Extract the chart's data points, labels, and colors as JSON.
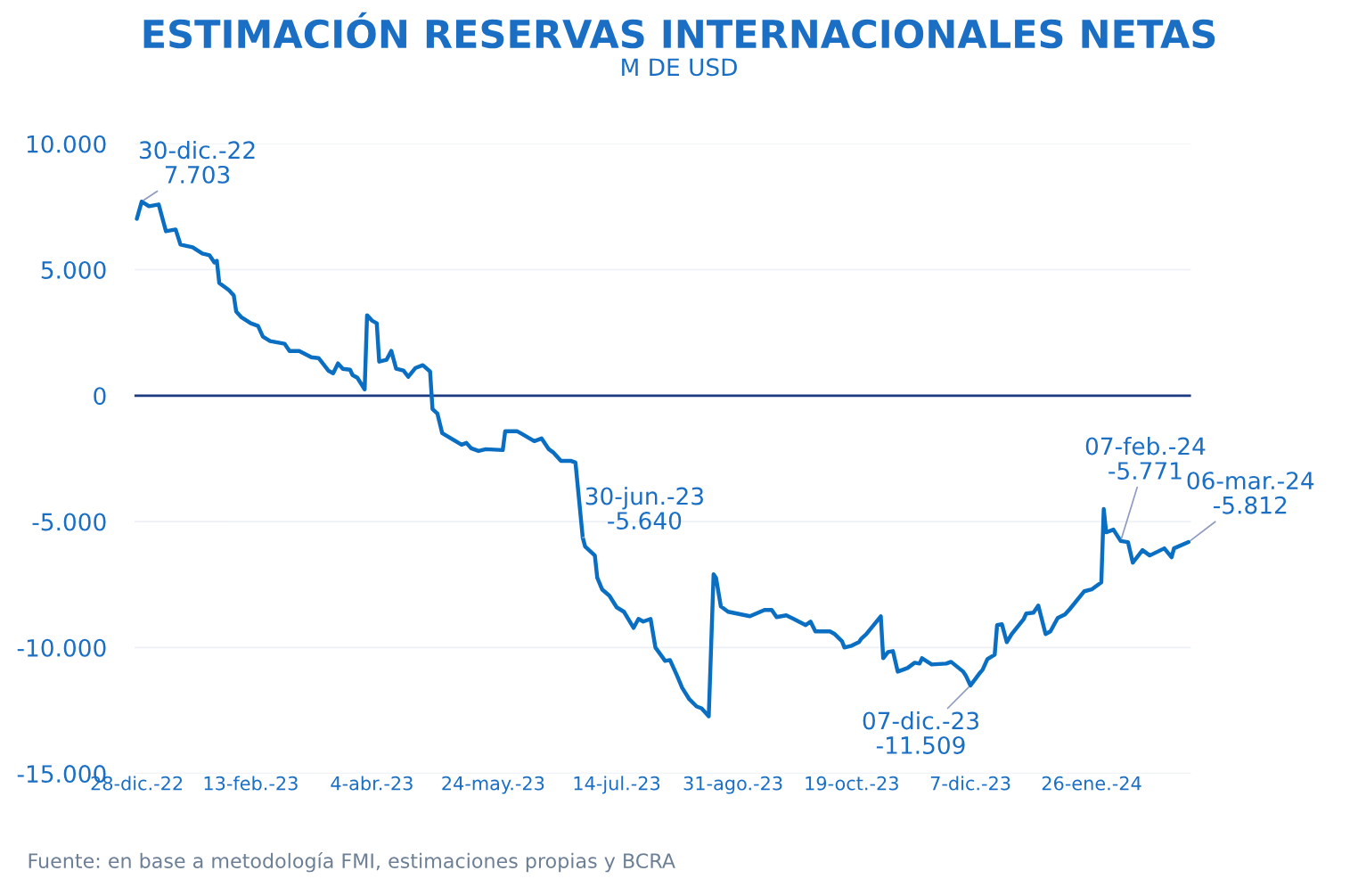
{
  "chart_data": {
    "type": "line",
    "title": "ESTIMACIÓN RESERVAS INTERNACIONALES NETAS",
    "subtitle": "M DE USD",
    "series": [
      {
        "color": "#0a6fc2",
        "x": [
          "2022-12-28",
          "2022-12-30",
          "2023-01-02",
          "2023-01-06",
          "2023-01-09",
          "2023-01-13",
          "2023-01-15",
          "2023-01-20",
          "2023-01-24",
          "2023-01-27",
          "2023-01-29",
          "2023-01-30",
          "2023-01-31",
          "2023-02-04",
          "2023-02-06",
          "2023-02-07",
          "2023-02-09",
          "2023-02-13",
          "2023-02-16",
          "2023-02-18",
          "2023-02-21",
          "2023-02-27",
          "2023-03-01",
          "2023-03-05",
          "2023-03-10",
          "2023-03-13",
          "2023-03-17",
          "2023-03-19",
          "2023-03-21",
          "2023-03-23",
          "2023-03-26",
          "2023-03-27",
          "2023-03-29",
          "2023-04-01",
          "2023-04-02",
          "2023-04-04",
          "2023-04-06",
          "2023-04-07",
          "2023-04-10",
          "2023-04-12",
          "2023-04-14",
          "2023-04-17",
          "2023-04-19",
          "2023-04-22",
          "2023-04-25",
          "2023-04-28",
          "2023-04-29",
          "2023-05-01",
          "2023-05-03",
          "2023-05-11",
          "2023-05-13",
          "2023-05-15",
          "2023-05-18",
          "2023-05-21",
          "2023-05-28",
          "2023-05-29",
          "2023-06-03",
          "2023-06-05",
          "2023-06-10",
          "2023-06-13",
          "2023-06-16",
          "2023-06-18",
          "2023-06-21",
          "2023-06-25",
          "2023-06-27",
          "2023-06-30",
          "2023-07-01",
          "2023-07-05",
          "2023-07-06",
          "2023-07-08",
          "2023-07-11",
          "2023-07-14",
          "2023-07-17",
          "2023-07-21",
          "2023-07-23",
          "2023-07-25",
          "2023-07-28",
          "2023-07-30",
          "2023-08-03",
          "2023-08-05",
          "2023-08-08",
          "2023-08-10",
          "2023-08-13",
          "2023-08-16",
          "2023-08-18",
          "2023-08-21",
          "2023-08-23",
          "2023-08-24",
          "2023-08-26",
          "2023-08-29",
          "2023-09-07",
          "2023-09-13",
          "2023-09-16",
          "2023-09-18",
          "2023-09-22",
          "2023-09-25",
          "2023-09-30",
          "2023-10-02",
          "2023-10-04",
          "2023-10-10",
          "2023-10-12",
          "2023-10-15",
          "2023-10-16",
          "2023-10-19",
          "2023-10-22",
          "2023-10-23",
          "2023-10-25",
          "2023-10-31",
          "2023-11-01",
          "2023-11-03",
          "2023-11-05",
          "2023-11-07",
          "2023-11-11",
          "2023-11-14",
          "2023-11-16",
          "2023-11-17",
          "2023-11-21",
          "2023-11-27",
          "2023-11-29",
          "2023-12-04",
          "2023-12-05",
          "2023-12-07",
          "2023-12-11",
          "2023-12-12",
          "2023-12-14",
          "2023-12-17",
          "2023-12-18",
          "2023-12-20",
          "2023-12-22",
          "2023-12-24",
          "2023-12-29",
          "2023-12-30",
          "2024-01-02",
          "2024-01-04",
          "2024-01-07",
          "2024-01-09",
          "2024-01-12",
          "2024-01-15",
          "2024-01-17",
          "2024-01-23",
          "2024-01-26",
          "2024-01-30",
          "2024-01-31",
          "2024-02-01",
          "2024-02-04",
          "2024-02-07",
          "2024-02-10",
          "2024-02-12",
          "2024-02-16",
          "2024-02-19",
          "2024-02-25",
          "2024-02-28",
          "2024-02-29",
          "2024-03-06"
        ],
        "values": [
          7021,
          7703,
          7518,
          7588,
          6525,
          6596,
          5993,
          5886,
          5638,
          5567,
          5284,
          5354,
          4468,
          4184,
          3972,
          3333,
          3120,
          2872,
          2766,
          2340,
          2163,
          2057,
          1773,
          1773,
          1525,
          1489,
          993,
          887,
          1277,
          1064,
          1028,
          816,
          709,
          248,
          3191,
          2979,
          2872,
          1347,
          1418,
          1773,
          1064,
          993,
          745,
          1099,
          1206,
          957,
          -532,
          -709,
          -1489,
          -1950,
          -1879,
          -2092,
          -2199,
          -2128,
          -2163,
          -1418,
          -1418,
          -1525,
          -1808,
          -1702,
          -2128,
          -2269,
          -2589,
          -2589,
          -2660,
          -5640,
          -5993,
          -6347,
          -7234,
          -7695,
          -7943,
          -8404,
          -8581,
          -9220,
          -8865,
          -8971,
          -8865,
          -10000,
          -10532,
          -10496,
          -11134,
          -11595,
          -12056,
          -12340,
          -12411,
          -12730,
          -7092,
          -7234,
          -8369,
          -8581,
          -8759,
          -8510,
          -8510,
          -8794,
          -8723,
          -8865,
          -9113,
          -8971,
          -9361,
          -9361,
          -9468,
          -9752,
          -10000,
          -9929,
          -9787,
          -9645,
          -9468,
          -8759,
          -10425,
          -10177,
          -10142,
          -10957,
          -10815,
          -10603,
          -10638,
          -10425,
          -10674,
          -10638,
          -10567,
          -10957,
          -11099,
          -11509,
          -10993,
          -10886,
          -10461,
          -10283,
          -9113,
          -9078,
          -9787,
          -9468,
          -8865,
          -8652,
          -8617,
          -8333,
          -9468,
          -9361,
          -8830,
          -8688,
          -8475,
          -7766,
          -7695,
          -7411,
          -4503,
          -5425,
          -5319,
          -5771,
          -5815,
          -6631,
          -6135,
          -6347,
          -6064,
          -6418,
          -6064,
          -5812
        ]
      }
    ],
    "xlim": [
      "2022-12-27",
      "2024-03-07"
    ],
    "xticks": [
      {
        "value": "2022-12-28",
        "label": "28-dic.-22"
      },
      {
        "value": "2023-02-13",
        "label": "13-feb.-23"
      },
      {
        "value": "2023-04-04",
        "label": "4-abr.-23"
      },
      {
        "value": "2023-05-24",
        "label": "24-may.-23"
      },
      {
        "value": "2023-07-14",
        "label": "14-jul.-23"
      },
      {
        "value": "2023-08-31",
        "label": "31-ago.-23"
      },
      {
        "value": "2023-10-19",
        "label": "19-oct.-23"
      },
      {
        "value": "2023-12-07",
        "label": "7-dic.-23"
      },
      {
        "value": "2024-01-26",
        "label": "26-ene.-24"
      }
    ],
    "ylim": [
      -15000,
      10000
    ],
    "yticks": [
      {
        "value": -15000,
        "label": "-15.000"
      },
      {
        "value": -10000,
        "label": "-10.000"
      },
      {
        "value": -5000,
        "label": "-5.000"
      },
      0,
      {
        "value": 5000,
        "label": "5.000"
      },
      {
        "value": 10000,
        "label": "10.000"
      }
    ],
    "grid": "y",
    "ref_lines": [
      {
        "axis": "y",
        "value": 0,
        "color": "#1c3a80"
      }
    ],
    "annotations": [
      {
        "text": "30-dic.-22\n7.703",
        "x": "2022-12-30",
        "y": 7703
      },
      {
        "text": "30-jun.-23\n-5.640",
        "x": "2023-06-30",
        "y": -5640
      },
      {
        "text": "07-dic.-23\n-11.509",
        "x": "2023-12-07",
        "y": -11509
      },
      {
        "text": "07-feb.-24\n-5.771",
        "x": "2024-02-07",
        "y": -5771
      },
      {
        "text": "06-mar.-24\n-5.812",
        "x": "2024-03-06",
        "y": -5812
      },
      "Fuente: en base a metodología FMI, estimaciones propias y BCRA"
    ]
  }
}
